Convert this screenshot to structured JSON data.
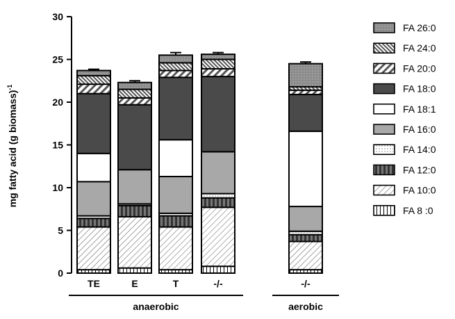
{
  "chart_data": {
    "type": "bar",
    "stacked": true,
    "title": "",
    "ylabel": "mg fatty acid (g biomass)",
    "ylabel_superscript": "-1",
    "ylim": [
      0,
      30
    ],
    "yticks": [
      0,
      5,
      10,
      15,
      20,
      25,
      30
    ],
    "grid": false,
    "legend_position": "right",
    "categories": [
      "TE",
      "E",
      "T",
      "-/-",
      "-/-"
    ],
    "groups": [
      {
        "label": "anaerobic",
        "categories": [
          0,
          1,
          2,
          3
        ]
      },
      {
        "label": "aerobic",
        "categories": [
          4
        ]
      }
    ],
    "series": [
      {
        "name": "FA 8 :0",
        "pattern": "vertical-lines",
        "values": [
          0.4,
          0.6,
          0.4,
          0.8,
          0.4
        ],
        "errors": [
          0.1,
          0.1,
          0.1,
          0.15,
          0.1
        ]
      },
      {
        "name": "FA 10:0",
        "pattern": "diagonal-lines",
        "values": [
          5.0,
          6.0,
          5.0,
          6.9,
          3.3
        ],
        "errors": [
          0.2,
          0.2,
          0.2,
          0.2,
          0.2
        ]
      },
      {
        "name": "FA 12:0",
        "pattern": "dark-vertical-stripes",
        "values": [
          1.0,
          1.3,
          1.3,
          1.1,
          0.8
        ],
        "errors": [
          0.5,
          0.6,
          0.6,
          0.5,
          0.5
        ]
      },
      {
        "name": "FA 14:0",
        "pattern": "dots",
        "values": [
          0.3,
          0.2,
          0.3,
          0.5,
          0.4
        ],
        "errors": [
          0.1,
          0.1,
          0.1,
          0.1,
          0.1
        ]
      },
      {
        "name": "FA 16:0",
        "pattern": "light-gray",
        "values": [
          4.0,
          4.0,
          4.3,
          4.9,
          2.9
        ],
        "errors": [
          0.15,
          0.15,
          0.25,
          0.15,
          0.2
        ]
      },
      {
        "name": "FA 18:1",
        "pattern": "white",
        "values": [
          3.3,
          0,
          4.3,
          0,
          8.8
        ],
        "errors": [
          0.2,
          0,
          0.15,
          0,
          0.15
        ]
      },
      {
        "name": "FA 18:0",
        "pattern": "dark-gray",
        "values": [
          7.0,
          7.6,
          7.3,
          8.8,
          4.3
        ],
        "errors": [
          0.3,
          0.3,
          0.2,
          0.3,
          0.3
        ]
      },
      {
        "name": "FA 20:0",
        "pattern": "thick-diagonal",
        "values": [
          1.1,
          0.8,
          0.8,
          0.9,
          0.5
        ],
        "errors": [
          0.4,
          0.4,
          0.5,
          0.4,
          0.3
        ]
      },
      {
        "name": "FA 24:0",
        "pattern": "dense-diagonal",
        "values": [
          1.0,
          1.0,
          0.9,
          1.1,
          0.4
        ],
        "errors": [
          0.3,
          0.3,
          0.3,
          0.3,
          0.3
        ]
      },
      {
        "name": "FA 26:0",
        "pattern": "medium-gray-dots",
        "values": [
          0.6,
          0.8,
          0.9,
          0.6,
          2.7
        ],
        "errors": [
          0.15,
          0.2,
          0.3,
          0.2,
          0.2
        ]
      }
    ]
  }
}
